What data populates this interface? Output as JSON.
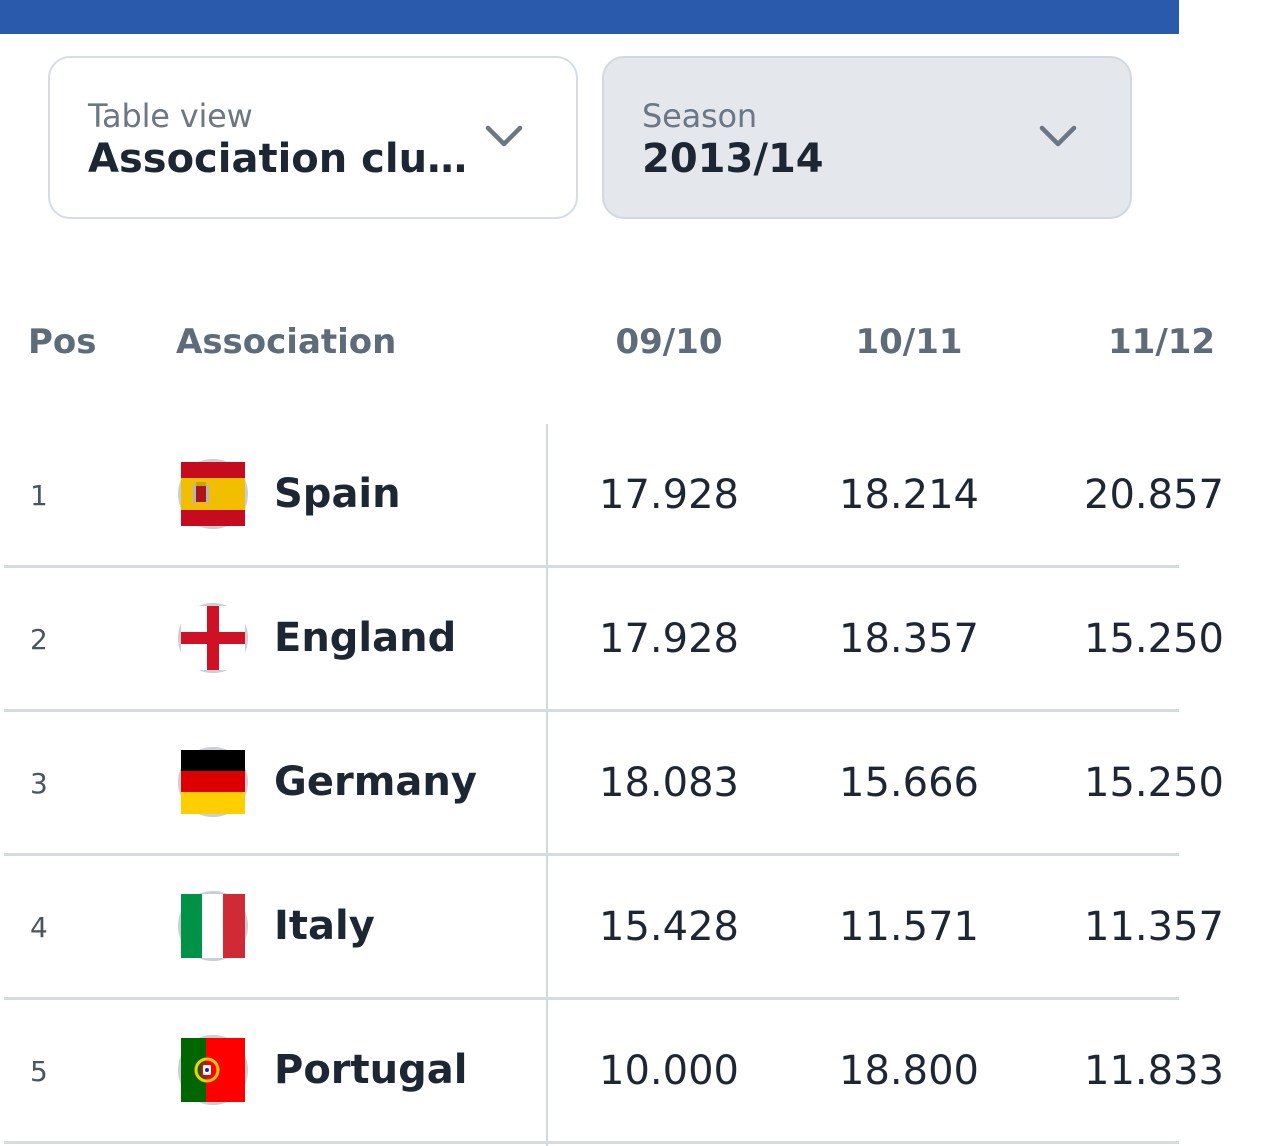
{
  "filters": {
    "table_view": {
      "label": "Table view",
      "value": "Association clu…"
    },
    "season": {
      "label": "Season",
      "value": "2013/14"
    }
  },
  "table": {
    "headers": {
      "pos": "Pos",
      "association": "Association",
      "col1": "09/10",
      "col2": "10/11",
      "col3": "11/12"
    },
    "rows": [
      {
        "pos": "1",
        "association": "Spain",
        "flag": "spain-flag-icon",
        "v1": "17.928",
        "v2": "18.214",
        "v3": "20.857"
      },
      {
        "pos": "2",
        "association": "England",
        "flag": "england-flag-icon",
        "v1": "17.928",
        "v2": "18.357",
        "v3": "15.250"
      },
      {
        "pos": "3",
        "association": "Germany",
        "flag": "germany-flag-icon",
        "v1": "18.083",
        "v2": "15.666",
        "v3": "15.250"
      },
      {
        "pos": "4",
        "association": "Italy",
        "flag": "italy-flag-icon",
        "v1": "15.428",
        "v2": "11.571",
        "v3": "11.357"
      },
      {
        "pos": "5",
        "association": "Portugal",
        "flag": "portugal-flag-icon",
        "v1": "10.000",
        "v2": "18.800",
        "v3": "11.833"
      }
    ]
  },
  "colors": {
    "topbar": "#2a5aab",
    "select_gray_bg": "#e4e8ec",
    "text_primary": "#1d2733",
    "text_secondary": "#6b7784"
  }
}
